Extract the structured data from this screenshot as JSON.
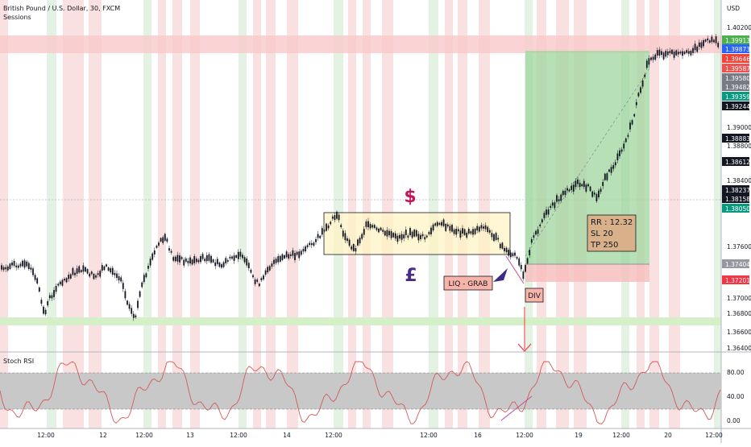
{
  "header": {
    "title": "British Pound / U.S. Dollar, 30, FXCM",
    "indicator": "Sessions",
    "currency": "USD"
  },
  "price_axis": {
    "ticks": [
      "1.40200",
      "1.39000",
      "1.38800",
      "1.38400",
      "1.37600",
      "1.37000",
      "1.36800",
      "1.36600",
      "1.36400"
    ],
    "badges": [
      {
        "label": "1.39913",
        "color": "#4caf50"
      },
      {
        "label": "1.39873",
        "color": "#2962ff"
      },
      {
        "label": "1.39646",
        "color": "#f44336"
      },
      {
        "label": "1.39587",
        "color": "#ef5350"
      },
      {
        "label": "1.39580",
        "color": "#787b86"
      },
      {
        "label": "1.39482",
        "color": "#787b86"
      },
      {
        "label": "1.39359",
        "color": "#089981"
      },
      {
        "label": "1.39244",
        "color": "#131722"
      },
      {
        "label": "1.38883",
        "color": "#131722"
      },
      {
        "label": "1.38612",
        "color": "#131722"
      },
      {
        "label": "1.38237",
        "color": "#131722"
      },
      {
        "label": "1.38158",
        "color": "#131722"
      },
      {
        "label": "1.38050",
        "color": "#089981"
      },
      {
        "label": "1.37404",
        "color": "#9598a1"
      },
      {
        "label": "1.37201",
        "color": "#f23645"
      }
    ]
  },
  "annotations": {
    "dollar": "$",
    "pound": "£",
    "liq_grab": "LIQ - GRAB",
    "div": "DIV",
    "rr": "RR : 12.32",
    "sl": "SL 20",
    "tp": "TP 250"
  },
  "rsi": {
    "title": "Stoch RSI",
    "ticks": [
      "80.00",
      "40.00",
      "0.00"
    ]
  },
  "time_axis": {
    "labels": [
      "12:00",
      "12",
      "12:00",
      "13",
      "12:00",
      "14",
      "12:00",
      "12:00",
      "16",
      "12:00",
      "19",
      "12:00",
      "20",
      "12:00"
    ]
  },
  "colors": {
    "session_red": "#f8d7d7",
    "session_green": "#d9eed9",
    "candle": "#131722",
    "rsi_line": "#d35a5a",
    "box_fill": "#fff5cc",
    "tp_zone": "#a8d9a8",
    "sl_zone": "#f7c4c4"
  }
}
